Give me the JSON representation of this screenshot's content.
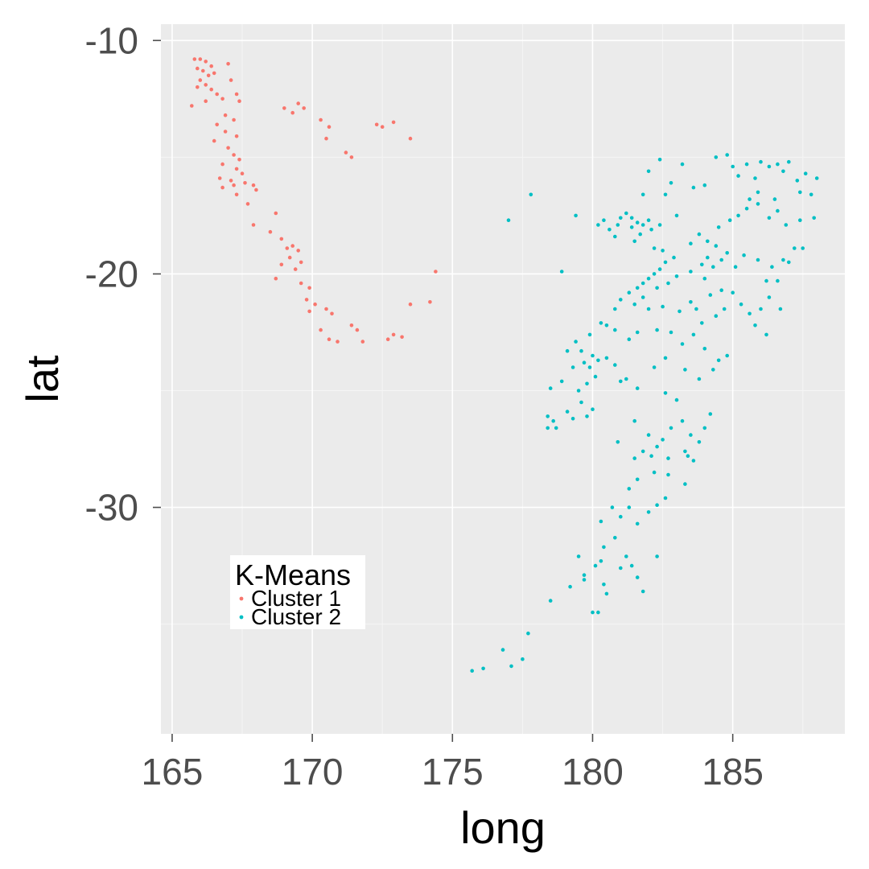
{
  "chart_data": {
    "type": "scatter",
    "title": "",
    "xlabel": "long",
    "ylabel": "lat",
    "xlim": [
      164.6,
      189.0
    ],
    "ylim": [
      -39.7,
      -9.3
    ],
    "x_ticks": [
      165,
      170,
      175,
      180,
      185
    ],
    "y_ticks": [
      -10,
      -20,
      -30
    ],
    "x_tick_labels": [
      "165",
      "170",
      "175",
      "180",
      "185"
    ],
    "y_tick_labels": [
      "-10",
      "-20",
      "-30"
    ],
    "grid": true,
    "legend": {
      "title": "K-Means",
      "placement": "inside-bottom-left"
    },
    "series": [
      {
        "name": "Cluster 1",
        "color": "#F8766D",
        "points": [
          [
            165.8,
            -10.8
          ],
          [
            166.0,
            -10.8
          ],
          [
            166.2,
            -10.9
          ],
          [
            166.4,
            -11.1
          ],
          [
            165.9,
            -11.2
          ],
          [
            166.1,
            -11.3
          ],
          [
            166.3,
            -11.5
          ],
          [
            166.5,
            -11.4
          ],
          [
            166.0,
            -11.7
          ],
          [
            166.2,
            -11.9
          ],
          [
            165.9,
            -12.0
          ],
          [
            166.4,
            -12.1
          ],
          [
            166.6,
            -12.3
          ],
          [
            165.7,
            -12.8
          ],
          [
            166.2,
            -12.6
          ],
          [
            166.8,
            -12.5
          ],
          [
            167.0,
            -11.0
          ],
          [
            167.1,
            -11.7
          ],
          [
            167.3,
            -12.3
          ],
          [
            167.4,
            -12.6
          ],
          [
            166.9,
            -13.2
          ],
          [
            167.2,
            -13.4
          ],
          [
            166.6,
            -13.6
          ],
          [
            166.9,
            -13.9
          ],
          [
            167.3,
            -14.1
          ],
          [
            166.5,
            -14.3
          ],
          [
            167.0,
            -14.6
          ],
          [
            167.2,
            -14.9
          ],
          [
            167.4,
            -15.1
          ],
          [
            166.8,
            -15.3
          ],
          [
            167.3,
            -15.5
          ],
          [
            167.5,
            -15.7
          ],
          [
            166.7,
            -15.9
          ],
          [
            167.1,
            -16.0
          ],
          [
            167.6,
            -16.1
          ],
          [
            166.8,
            -16.3
          ],
          [
            167.2,
            -16.2
          ],
          [
            167.9,
            -16.2
          ],
          [
            168.0,
            -16.4
          ],
          [
            167.3,
            -16.6
          ],
          [
            167.7,
            -17.0
          ],
          [
            167.9,
            -17.9
          ],
          [
            168.5,
            -18.2
          ],
          [
            168.7,
            -17.4
          ],
          [
            168.9,
            -18.5
          ],
          [
            169.1,
            -18.9
          ],
          [
            169.3,
            -18.8
          ],
          [
            169.5,
            -19.0
          ],
          [
            169.2,
            -19.3
          ],
          [
            169.6,
            -19.5
          ],
          [
            168.9,
            -19.6
          ],
          [
            169.4,
            -19.8
          ],
          [
            168.7,
            -20.2
          ],
          [
            169.6,
            -20.4
          ],
          [
            169.9,
            -20.6
          ],
          [
            169.8,
            -21.1
          ],
          [
            170.1,
            -21.3
          ],
          [
            169.9,
            -21.6
          ],
          [
            170.5,
            -21.5
          ],
          [
            170.7,
            -21.7
          ],
          [
            170.3,
            -22.4
          ],
          [
            170.6,
            -22.8
          ],
          [
            170.9,
            -22.9
          ],
          [
            171.4,
            -22.2
          ],
          [
            171.6,
            -22.4
          ],
          [
            171.8,
            -22.9
          ],
          [
            172.7,
            -22.8
          ],
          [
            172.9,
            -22.6
          ],
          [
            173.2,
            -22.7
          ],
          [
            173.5,
            -21.3
          ],
          [
            174.2,
            -21.2
          ],
          [
            174.4,
            -19.9
          ],
          [
            169.0,
            -12.9
          ],
          [
            169.3,
            -13.1
          ],
          [
            169.5,
            -12.7
          ],
          [
            169.7,
            -12.9
          ],
          [
            170.3,
            -13.4
          ],
          [
            170.5,
            -14.2
          ],
          [
            170.6,
            -13.7
          ],
          [
            171.2,
            -14.8
          ],
          [
            171.4,
            -15.0
          ],
          [
            172.3,
            -13.6
          ],
          [
            172.5,
            -13.7
          ],
          [
            172.9,
            -13.5
          ],
          [
            173.5,
            -14.2
          ]
        ]
      },
      {
        "name": "Cluster 2",
        "color": "#00BFC4",
        "points": [
          [
            175.7,
            -37.0
          ],
          [
            176.1,
            -36.9
          ],
          [
            176.8,
            -36.1
          ],
          [
            177.1,
            -36.8
          ],
          [
            177.5,
            -36.5
          ],
          [
            177.7,
            -35.4
          ],
          [
            178.5,
            -34.0
          ],
          [
            179.2,
            -33.4
          ],
          [
            179.7,
            -33.1
          ],
          [
            180.0,
            -34.5
          ],
          [
            180.2,
            -34.5
          ],
          [
            180.4,
            -33.3
          ],
          [
            180.5,
            -33.7
          ],
          [
            179.5,
            -32.1
          ],
          [
            179.7,
            -32.9
          ],
          [
            180.1,
            -32.5
          ],
          [
            180.4,
            -31.7
          ],
          [
            180.3,
            -32.3
          ],
          [
            180.8,
            -31.3
          ],
          [
            181.0,
            -32.6
          ],
          [
            181.2,
            -32.1
          ],
          [
            181.4,
            -32.5
          ],
          [
            181.6,
            -33.0
          ],
          [
            181.8,
            -33.6
          ],
          [
            182.3,
            -32.1
          ],
          [
            180.3,
            -30.6
          ],
          [
            180.7,
            -30.0
          ],
          [
            181.0,
            -30.4
          ],
          [
            181.3,
            -30.0
          ],
          [
            181.6,
            -30.7
          ],
          [
            182.0,
            -30.2
          ],
          [
            182.3,
            -29.9
          ],
          [
            182.6,
            -29.6
          ],
          [
            181.3,
            -29.2
          ],
          [
            181.6,
            -28.8
          ],
          [
            182.2,
            -28.5
          ],
          [
            182.7,
            -28.6
          ],
          [
            183.3,
            -29.0
          ],
          [
            181.8,
            -27.6
          ],
          [
            182.1,
            -27.8
          ],
          [
            182.3,
            -27.4
          ],
          [
            182.5,
            -27.1
          ],
          [
            182.0,
            -26.9
          ],
          [
            182.8,
            -26.6
          ],
          [
            183.2,
            -26.3
          ],
          [
            183.5,
            -26.9
          ],
          [
            181.5,
            -26.3
          ],
          [
            180.9,
            -27.2
          ],
          [
            181.5,
            -27.9
          ],
          [
            182.7,
            -27.9
          ],
          [
            183.4,
            -27.8
          ],
          [
            183.6,
            -28.0
          ],
          [
            183.3,
            -27.6
          ],
          [
            183.8,
            -27.2
          ],
          [
            184.0,
            -26.6
          ],
          [
            184.2,
            -26.0
          ],
          [
            183.0,
            -25.4
          ],
          [
            182.6,
            -25.1
          ],
          [
            181.2,
            -24.5
          ],
          [
            181.6,
            -24.9
          ],
          [
            182.2,
            -24.0
          ],
          [
            182.6,
            -23.6
          ],
          [
            183.2,
            -23.0
          ],
          [
            183.6,
            -22.6
          ],
          [
            184.0,
            -23.2
          ],
          [
            184.5,
            -23.7
          ],
          [
            184.3,
            -24.1
          ],
          [
            184.8,
            -23.5
          ],
          [
            183.8,
            -24.5
          ],
          [
            183.3,
            -24.1
          ],
          [
            178.4,
            -26.1
          ],
          [
            178.6,
            -26.3
          ],
          [
            178.4,
            -26.6
          ],
          [
            178.7,
            -26.6
          ],
          [
            179.1,
            -25.9
          ],
          [
            179.3,
            -26.2
          ],
          [
            179.6,
            -25.5
          ],
          [
            179.8,
            -26.1
          ],
          [
            180.0,
            -25.8
          ],
          [
            179.5,
            -25.0
          ],
          [
            179.8,
            -24.7
          ],
          [
            180.1,
            -24.4
          ],
          [
            179.3,
            -24.0
          ],
          [
            179.7,
            -23.8
          ],
          [
            180.0,
            -23.5
          ],
          [
            180.2,
            -23.7
          ],
          [
            179.9,
            -24.0
          ],
          [
            180.5,
            -23.6
          ],
          [
            179.1,
            -23.3
          ],
          [
            179.6,
            -23.3
          ],
          [
            180.8,
            -23.9
          ],
          [
            181.0,
            -24.6
          ],
          [
            178.5,
            -24.9
          ],
          [
            178.9,
            -24.6
          ],
          [
            179.4,
            -22.9
          ],
          [
            179.9,
            -22.6
          ],
          [
            180.3,
            -22.1
          ],
          [
            180.5,
            -22.2
          ],
          [
            180.8,
            -22.4
          ],
          [
            181.3,
            -22.8
          ],
          [
            181.6,
            -22.5
          ],
          [
            180.8,
            -21.5
          ],
          [
            181.0,
            -21.1
          ],
          [
            181.3,
            -20.8
          ],
          [
            181.6,
            -20.6
          ],
          [
            181.8,
            -20.4
          ],
          [
            182.0,
            -20.2
          ],
          [
            182.2,
            -20.0
          ],
          [
            182.4,
            -19.8
          ],
          [
            182.3,
            -20.6
          ],
          [
            182.7,
            -20.4
          ],
          [
            183.0,
            -20.1
          ],
          [
            181.5,
            -21.3
          ],
          [
            181.8,
            -21.0
          ],
          [
            182.0,
            -21.5
          ],
          [
            182.5,
            -21.4
          ],
          [
            183.1,
            -21.6
          ],
          [
            183.5,
            -21.2
          ],
          [
            183.7,
            -21.5
          ],
          [
            182.8,
            -22.5
          ],
          [
            182.3,
            -22.4
          ],
          [
            183.9,
            -22.1
          ],
          [
            184.4,
            -21.8
          ],
          [
            184.7,
            -21.5
          ],
          [
            184.2,
            -20.9
          ],
          [
            184.6,
            -20.7
          ],
          [
            185.0,
            -20.8
          ],
          [
            185.3,
            -21.3
          ],
          [
            185.6,
            -21.7
          ],
          [
            186.0,
            -21.5
          ],
          [
            186.3,
            -21.0
          ],
          [
            185.8,
            -22.2
          ],
          [
            186.2,
            -22.6
          ],
          [
            186.7,
            -21.5
          ],
          [
            183.5,
            -19.9
          ],
          [
            183.9,
            -19.6
          ],
          [
            184.1,
            -19.3
          ],
          [
            184.3,
            -19.7
          ],
          [
            184.6,
            -19.4
          ],
          [
            184.0,
            -20.2
          ],
          [
            184.4,
            -18.8
          ],
          [
            184.8,
            -19.1
          ],
          [
            185.1,
            -19.7
          ],
          [
            185.4,
            -19.2
          ],
          [
            185.9,
            -19.4
          ],
          [
            186.4,
            -19.7
          ],
          [
            186.8,
            -19.4
          ],
          [
            187.0,
            -19.5
          ],
          [
            187.2,
            -18.9
          ],
          [
            187.5,
            -18.9
          ],
          [
            186.2,
            -20.3
          ],
          [
            186.6,
            -20.3
          ],
          [
            181.4,
            -17.6
          ],
          [
            181.6,
            -17.8
          ],
          [
            181.8,
            -17.9
          ],
          [
            182.0,
            -17.7
          ],
          [
            181.2,
            -17.4
          ],
          [
            181.0,
            -17.6
          ],
          [
            180.9,
            -17.9
          ],
          [
            181.4,
            -18.0
          ],
          [
            181.7,
            -18.3
          ],
          [
            182.1,
            -18.1
          ],
          [
            182.4,
            -17.9
          ],
          [
            180.6,
            -18.1
          ],
          [
            180.4,
            -17.7
          ],
          [
            180.2,
            -17.9
          ],
          [
            180.8,
            -18.4
          ],
          [
            181.5,
            -18.6
          ],
          [
            182.2,
            -18.9
          ],
          [
            182.5,
            -19.0
          ],
          [
            182.6,
            -19.5
          ],
          [
            182.9,
            -19.3
          ],
          [
            183.5,
            -18.7
          ],
          [
            183.8,
            -18.3
          ],
          [
            184.1,
            -18.6
          ],
          [
            184.5,
            -18.0
          ],
          [
            184.9,
            -17.7
          ],
          [
            185.2,
            -17.5
          ],
          [
            185.5,
            -17.2
          ],
          [
            185.9,
            -17.0
          ],
          [
            186.3,
            -17.6
          ],
          [
            186.6,
            -17.3
          ],
          [
            186.9,
            -17.9
          ],
          [
            187.4,
            -17.7
          ],
          [
            187.9,
            -17.6
          ],
          [
            182.4,
            -15.1
          ],
          [
            182.8,
            -16.1
          ],
          [
            183.2,
            -15.3
          ],
          [
            183.6,
            -16.3
          ],
          [
            184.0,
            -16.2
          ],
          [
            184.4,
            -15.0
          ],
          [
            184.8,
            -14.9
          ],
          [
            185.0,
            -15.4
          ],
          [
            185.2,
            -15.8
          ],
          [
            185.5,
            -15.3
          ],
          [
            185.8,
            -15.9
          ],
          [
            186.0,
            -15.2
          ],
          [
            186.3,
            -15.4
          ],
          [
            186.6,
            -15.3
          ],
          [
            186.8,
            -15.6
          ],
          [
            187.0,
            -15.2
          ],
          [
            187.3,
            -16.0
          ],
          [
            187.6,
            -15.7
          ],
          [
            188.0,
            -15.9
          ],
          [
            187.8,
            -16.6
          ],
          [
            187.4,
            -16.5
          ],
          [
            185.6,
            -16.8
          ],
          [
            185.9,
            -16.5
          ],
          [
            186.5,
            -16.8
          ],
          [
            183.0,
            -17.5
          ],
          [
            182.6,
            -16.6
          ],
          [
            182.0,
            -15.6
          ],
          [
            181.8,
            -16.6
          ],
          [
            177.8,
            -16.6
          ],
          [
            177.0,
            -17.7
          ],
          [
            178.9,
            -19.9
          ],
          [
            179.4,
            -17.5
          ]
        ]
      }
    ]
  }
}
